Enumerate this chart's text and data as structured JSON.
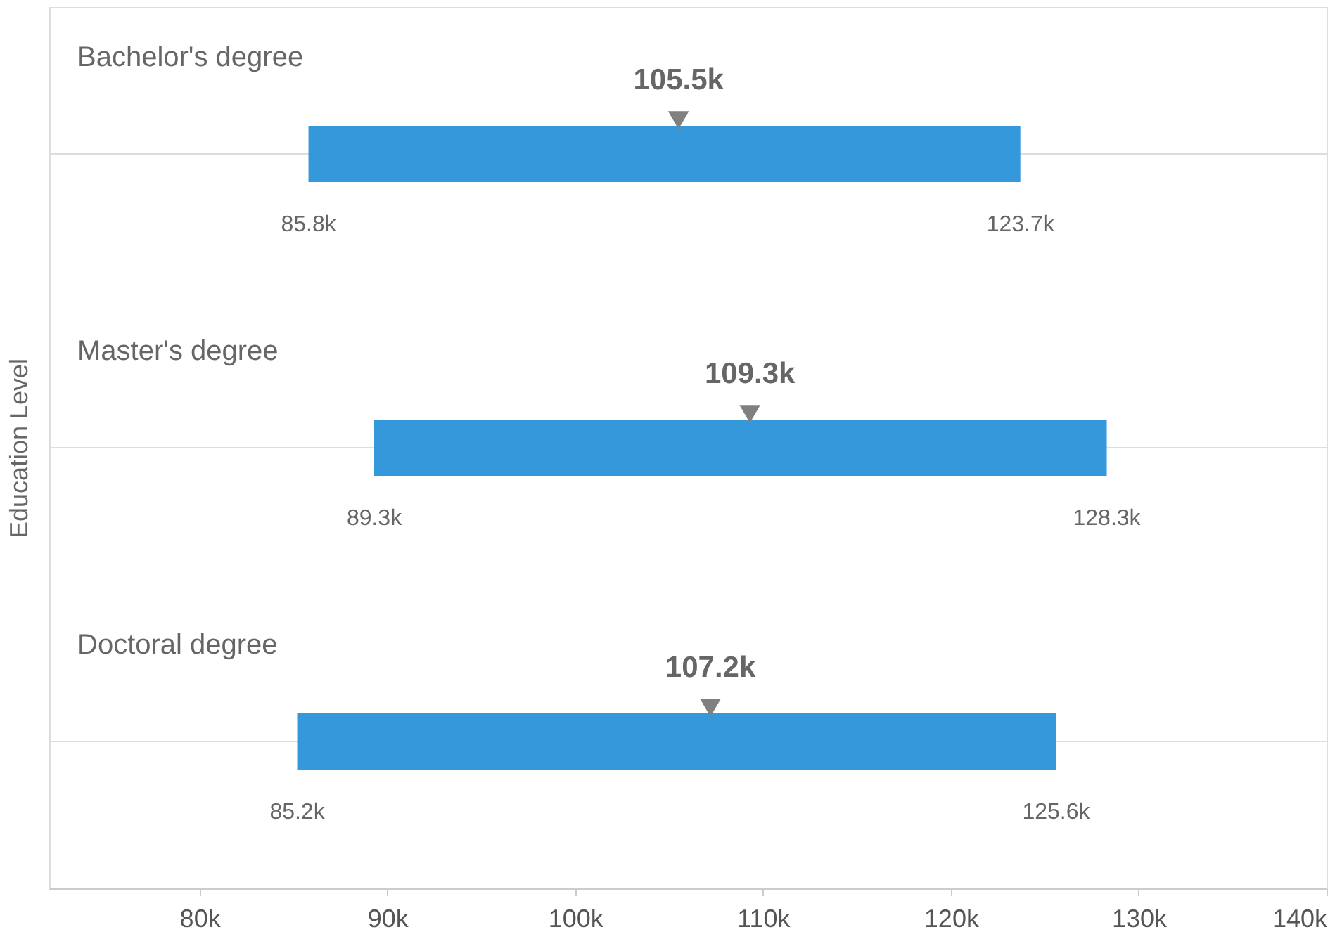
{
  "chart_data": {
    "type": "bar",
    "orientation": "horizontal",
    "ylabel": "Education Level",
    "categories": [
      "Bachelor's degree",
      "Master's degree",
      "Doctoral degree"
    ],
    "series": [
      {
        "color": "#3498db",
        "base": [
          85800,
          89300,
          85200
        ],
        "values": [
          37900,
          39000,
          40400
        ]
      },
      {
        "type": "scatter",
        "color": "#808080",
        "marker": "triangle",
        "x": [
          "Bachelor's degree",
          "Master's degree",
          "Doctoral degree"
        ],
        "values": [
          105500,
          109300,
          107200
        ],
        "value_labels": [
          "105.5k",
          "109.3k",
          "107.2k"
        ]
      }
    ],
    "annotations": [
      {
        "text": "85.8k",
        "x": 85800,
        "y": "Bachelor's degree"
      },
      {
        "text": "123.7k",
        "x": 123700,
        "y": "Bachelor's degree"
      },
      {
        "text": "89.3k",
        "x": 89300,
        "y": "Master's degree"
      },
      {
        "text": "128.3k",
        "x": 128300,
        "y": "Master's degree"
      },
      {
        "text": "85.2k",
        "x": 85200,
        "y": "Doctoral degree"
      },
      {
        "text": "125.6k",
        "x": 125600,
        "y": "Doctoral degree"
      }
    ],
    "xlim": [
      72000,
      140000
    ],
    "xticks": [
      {
        "value": 80000,
        "label": "80k"
      },
      {
        "value": 90000,
        "label": "90k"
      },
      {
        "value": 100000,
        "label": "100k"
      },
      {
        "value": 110000,
        "label": "110k"
      },
      {
        "value": 120000,
        "label": "120k"
      },
      {
        "value": 130000,
        "label": "130k"
      },
      {
        "value": 140000,
        "label": "140k"
      }
    ],
    "grid": "y",
    "tick_labels": "x"
  }
}
